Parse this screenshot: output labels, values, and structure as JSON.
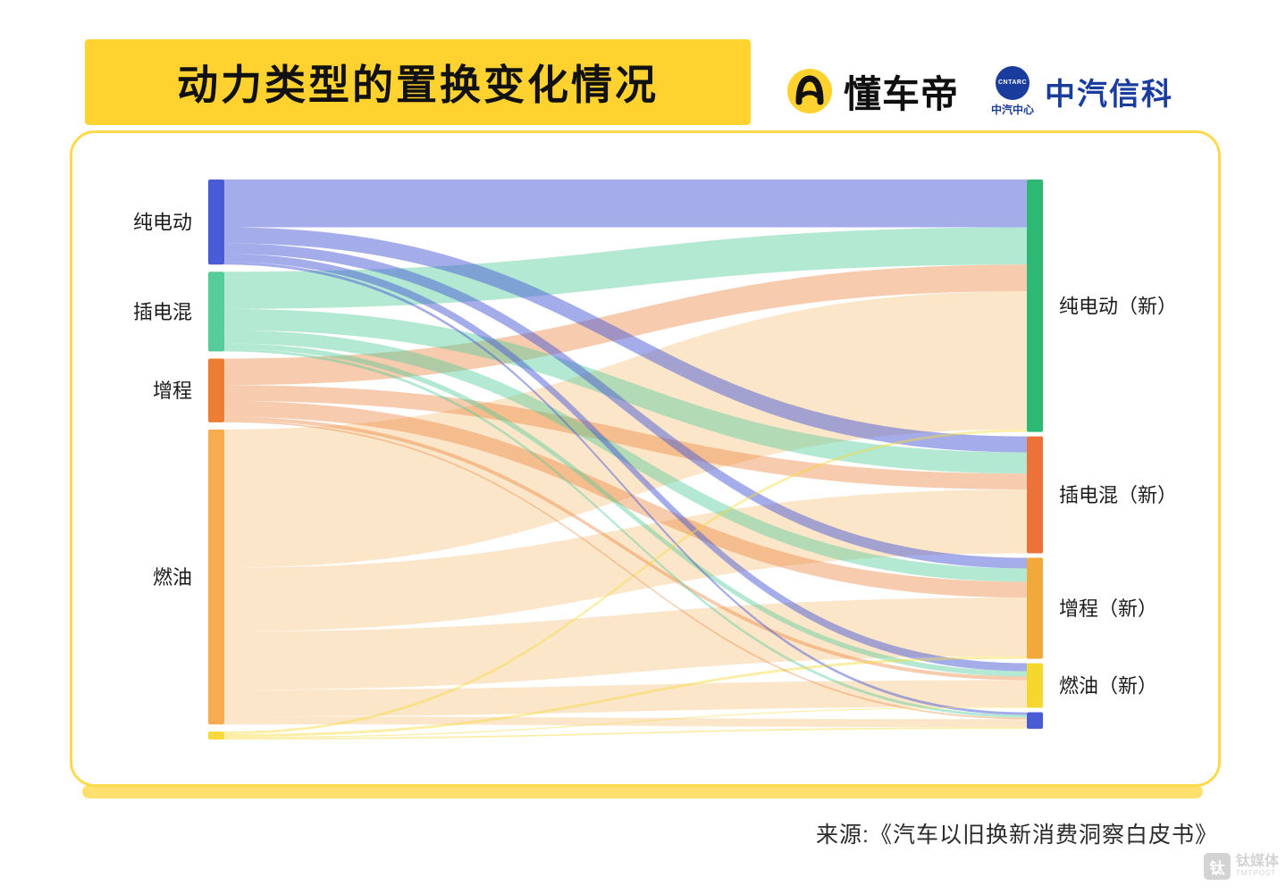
{
  "header": {
    "title": "动力类型的置换变化情况",
    "logos": {
      "dongchedi": "懂车帝",
      "catarc_emblem": "CNTARC",
      "catarc_center": "中汽中心",
      "catarc_name": "中汽信科"
    }
  },
  "footer": {
    "source": "来源:《汽车以旧换新消费洞察白皮书》",
    "watermark_icon": "钛",
    "watermark_cn": "钛媒体",
    "watermark_en": "TMTPOST"
  },
  "chart_data": {
    "type": "sankey",
    "title": "动力类型的置换变化情况",
    "values_note": "estimated percent share, read from flow widths",
    "left_nodes": [
      {
        "id": "bev_old",
        "label": "纯电动",
        "color": "#4A5BD6",
        "flow_opacity": 0.5
      },
      {
        "id": "phev_old",
        "label": "插电混",
        "color": "#57CC9B",
        "flow_opacity": 0.45
      },
      {
        "id": "erev_old",
        "label": "增程",
        "color": "#EC7D33",
        "flow_opacity": 0.4
      },
      {
        "id": "ice_old",
        "label": "燃油",
        "color": "#F6AC4F",
        "flow_opacity": 0.3
      },
      {
        "id": "other_old",
        "label": "",
        "color": "#F6D93C",
        "flow_opacity": 0.45
      }
    ],
    "right_nodes": [
      {
        "id": "bev_new",
        "label": "纯电动（新）",
        "color": "#2DB873"
      },
      {
        "id": "phev_new",
        "label": "插电混（新）",
        "color": "#EC7239"
      },
      {
        "id": "erev_new",
        "label": "增程（新）",
        "color": "#F2A93B"
      },
      {
        "id": "ice_new",
        "label": "燃油（新）",
        "color": "#F6D72E"
      },
      {
        "id": "other_new",
        "label": "",
        "color": "#4A5BD6"
      }
    ],
    "links": [
      {
        "source": "bev_old",
        "target": "bev_new",
        "value": 9
      },
      {
        "source": "bev_old",
        "target": "phev_new",
        "value": 3
      },
      {
        "source": "bev_old",
        "target": "erev_new",
        "value": 2
      },
      {
        "source": "bev_old",
        "target": "ice_new",
        "value": 1.5
      },
      {
        "source": "bev_old",
        "target": "other_new",
        "value": 0.5
      },
      {
        "source": "phev_old",
        "target": "bev_new",
        "value": 7
      },
      {
        "source": "phev_old",
        "target": "phev_new",
        "value": 4
      },
      {
        "source": "phev_old",
        "target": "erev_new",
        "value": 2.5
      },
      {
        "source": "phev_old",
        "target": "ice_new",
        "value": 1
      },
      {
        "source": "phev_old",
        "target": "other_new",
        "value": 0.5
      },
      {
        "source": "erev_old",
        "target": "bev_new",
        "value": 5
      },
      {
        "source": "erev_old",
        "target": "phev_new",
        "value": 3
      },
      {
        "source": "erev_old",
        "target": "erev_new",
        "value": 3
      },
      {
        "source": "erev_old",
        "target": "ice_new",
        "value": 0.7
      },
      {
        "source": "erev_old",
        "target": "other_new",
        "value": 0.3
      },
      {
        "source": "ice_old",
        "target": "bev_new",
        "value": 26
      },
      {
        "source": "ice_old",
        "target": "phev_new",
        "value": 12
      },
      {
        "source": "ice_old",
        "target": "erev_new",
        "value": 11
      },
      {
        "source": "ice_old",
        "target": "ice_new",
        "value": 5
      },
      {
        "source": "ice_old",
        "target": "other_new",
        "value": 1.5
      },
      {
        "source": "other_old",
        "target": "bev_new",
        "value": 0.5
      },
      {
        "source": "other_old",
        "target": "erev_new",
        "value": 0.5
      },
      {
        "source": "other_old",
        "target": "ice_new",
        "value": 0.2
      },
      {
        "source": "other_old",
        "target": "other_new",
        "value": 0.3
      }
    ],
    "layout": {
      "orientation": "left-right",
      "legend": false,
      "grid": false
    }
  }
}
